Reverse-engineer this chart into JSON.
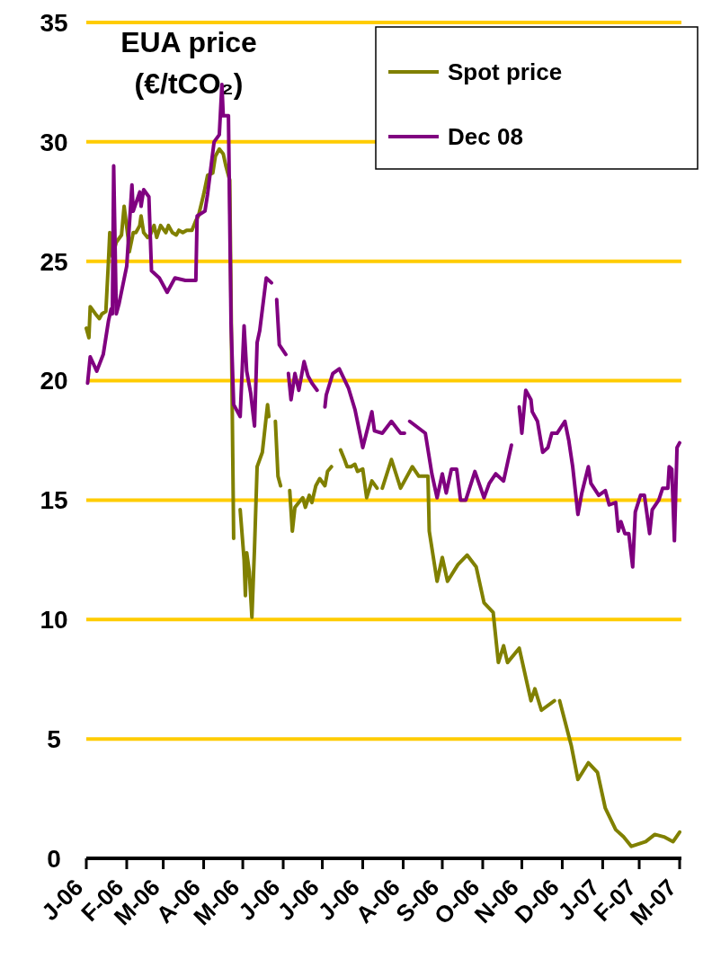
{
  "chart_data": {
    "type": "line",
    "title": "EUA price (€/tCO₂)",
    "xlim": [
      "2006-01-01",
      "2007-04-01"
    ],
    "xticks": [
      {
        "value": "2006-01-01",
        "label": "J-06"
      },
      {
        "value": "2006-02-01",
        "label": "F-06"
      },
      {
        "value": "2006-03-01",
        "label": "M-06"
      },
      {
        "value": "2006-04-01",
        "label": "A-06"
      },
      {
        "value": "2006-05-01",
        "label": "M-06"
      },
      {
        "value": "2006-06-01",
        "label": "J-06"
      },
      {
        "value": "2006-07-01",
        "label": "J-06"
      },
      {
        "value": "2006-08-01",
        "label": "J-06"
      },
      {
        "value": "2006-09-01",
        "label": "A-06"
      },
      {
        "value": "2006-10-01",
        "label": "S-06"
      },
      {
        "value": "2006-11-01",
        "label": "O-06"
      },
      {
        "value": "2006-12-01",
        "label": "N-06"
      },
      {
        "value": "2007-01-01",
        "label": "D-06"
      },
      {
        "value": "2007-02-01",
        "label": "J-07"
      },
      {
        "value": "2007-03-01",
        "label": "F-07"
      },
      {
        "value": "2007-04-01",
        "label": "M-07"
      }
    ],
    "ylim": [
      0,
      35
    ],
    "yticks": [
      0,
      5,
      10,
      15,
      20,
      25,
      30,
      35
    ],
    "grid": "y",
    "legend": "top right",
    "line_style": "solid",
    "marker": "none",
    "series": [
      {
        "name": "Spot price",
        "color": "#808000",
        "x": [
          "2006-01-01",
          "2006-01-03",
          "2006-01-04",
          "2006-01-08",
          "2006-01-11",
          "2006-01-13",
          "2006-01-16",
          "2006-01-18",
          "2006-01-19",
          "2006-01-21",
          "2006-01-24",
          "2006-01-28",
          "2006-01-30",
          "2006-02-02",
          "2006-02-03",
          "2006-02-06",
          "2006-02-08",
          "2006-02-11",
          "2006-02-12",
          "2006-02-14",
          "2006-02-17",
          "2006-02-19",
          "2006-02-22",
          "2006-02-24",
          "2006-02-27",
          "2006-03-03",
          "2006-03-05",
          "2006-03-08",
          "2006-03-11",
          "2006-03-13",
          "2006-03-16",
          "2006-03-19",
          "2006-03-23",
          "2006-03-26",
          "2006-03-28",
          "2006-04-01",
          "2006-04-04",
          "2006-04-08",
          "2006-04-10",
          "2006-04-13",
          "2006-04-16",
          "2006-04-18",
          "2006-04-21",
          "2006-04-24",
          "2006-04-26",
          "2006-04-29",
          "2006-05-02",
          "2006-05-03",
          "2006-05-04",
          "2006-05-06",
          "2006-05-08",
          "2006-05-10",
          "2006-05-12",
          "2006-05-16",
          "2006-05-20",
          "2006-05-21",
          "2006-05-23",
          "2006-05-26",
          "2006-05-28",
          "2006-05-30",
          "2006-06-02",
          "2006-06-06",
          "2006-06-08",
          "2006-06-10",
          "2006-06-13",
          "2006-06-16",
          "2006-06-18",
          "2006-06-21",
          "2006-06-23",
          "2006-06-26",
          "2006-06-29",
          "2006-07-03",
          "2006-07-05",
          "2006-07-08",
          "2006-07-10",
          "2006-07-15",
          "2006-07-18",
          "2006-07-20",
          "2006-07-23",
          "2006-07-26",
          "2006-07-28",
          "2006-08-01",
          "2006-08-04",
          "2006-08-08",
          "2006-08-12",
          "2006-08-13",
          "2006-08-16",
          "2006-08-23",
          "2006-08-30",
          "2006-09-08",
          "2006-09-13",
          "2006-09-20",
          "2006-09-21",
          "2006-09-27",
          "2006-10-01",
          "2006-10-05",
          "2006-10-13",
          "2006-10-20",
          "2006-10-27",
          "2006-11-02",
          "2006-11-09",
          "2006-11-13",
          "2006-11-17",
          "2006-11-20",
          "2006-11-29",
          "2006-12-08",
          "2006-12-11",
          "2006-12-16",
          "2006-12-26",
          "2006-12-28",
          "2006-12-30",
          "2007-01-08",
          "2007-01-13",
          "2007-01-21",
          "2007-01-28",
          "2007-02-03",
          "2007-02-11",
          "2007-02-17",
          "2007-02-23",
          "2007-03-06",
          "2007-03-13",
          "2007-03-20",
          "2007-03-27",
          "2007-04-01"
        ],
        "values": [
          22.2,
          21.8,
          23.1,
          22.8,
          22.6,
          22.8,
          22.9,
          25,
          26.2,
          25.2,
          25.8,
          26.1,
          27.3,
          26,
          25.4,
          26.2,
          26.2,
          26.5,
          26.9,
          26.2,
          26,
          26.1,
          26.5,
          26,
          26.5,
          26.2,
          26.5,
          26.2,
          26.1,
          26.3,
          26.2,
          26.3,
          26.3,
          26.7,
          26.9,
          27.8,
          28.6,
          28.7,
          29.4,
          29.7,
          29.5,
          29,
          28.4,
          13.4,
          null,
          14.6,
          12.5,
          11,
          12.8,
          12,
          10.1,
          13,
          16.4,
          17,
          19,
          18.5,
          null,
          18.3,
          16,
          15.6,
          null,
          15.4,
          13.7,
          14.7,
          14.9,
          15.1,
          14.7,
          15.2,
          14.9,
          15.6,
          15.9,
          15.6,
          16.2,
          16.4,
          null,
          17.1,
          16.7,
          16.4,
          16.4,
          16.5,
          16.2,
          16.3,
          15.1,
          15.8,
          15.5,
          null,
          15.5,
          16.7,
          15.5,
          16.4,
          16,
          16,
          13.7,
          11.6,
          12.6,
          11.6,
          12.3,
          12.7,
          12.2,
          10.7,
          10.3,
          8.2,
          8.9,
          8.2,
          8.8,
          6.6,
          7.1,
          6.2,
          6.6,
          null,
          6.6,
          4.7,
          3.3,
          4,
          3.6,
          2.1,
          1.2,
          0.9,
          0.5,
          0.7,
          1,
          0.9,
          0.7,
          1.1
        ]
      },
      {
        "name": "Dec 08",
        "color": "#800080",
        "x": [
          "2006-01-02",
          "2006-01-04",
          "2006-01-09",
          "2006-01-14",
          "2006-01-18",
          "2006-01-20",
          "2006-01-21",
          "2006-01-22",
          "2006-01-24",
          "2006-01-26",
          "2006-02-01",
          "2006-02-05",
          "2006-02-06",
          "2006-02-11",
          "2006-02-12",
          "2006-02-14",
          "2006-02-18",
          "2006-02-20",
          "2006-02-26",
          "2006-03-04",
          "2006-03-10",
          "2006-03-18",
          "2006-03-26",
          "2006-03-27",
          "2006-04-02",
          "2006-04-04",
          "2006-04-09",
          "2006-04-13",
          "2006-04-15",
          "2006-04-16",
          "2006-04-20",
          "2006-04-22",
          "2006-04-24",
          "2006-04-29",
          "2006-05-02",
          "2006-05-04",
          "2006-05-07",
          "2006-05-10",
          "2006-05-12",
          "2006-05-14",
          "2006-05-19",
          "2006-05-23",
          "2006-05-24",
          "2006-05-27",
          "2006-05-29",
          "2006-06-03",
          "2006-06-04",
          "2006-06-05",
          "2006-06-07",
          "2006-06-10",
          "2006-06-13",
          "2006-06-17",
          "2006-06-20",
          "2006-06-23",
          "2006-06-27",
          "2006-06-29",
          "2006-07-03",
          "2006-07-04",
          "2006-07-09",
          "2006-07-14",
          "2006-07-21",
          "2006-07-26",
          "2006-08-01",
          "2006-08-08",
          "2006-08-10",
          "2006-08-16",
          "2006-08-23",
          "2006-08-30",
          "2006-09-02",
          "2006-09-04",
          "2006-09-06",
          "2006-09-18",
          "2006-09-23",
          "2006-09-27",
          "2006-10-01",
          "2006-10-04",
          "2006-10-08",
          "2006-10-12",
          "2006-10-15",
          "2006-10-19",
          "2006-10-26",
          "2006-11-02",
          "2006-11-06",
          "2006-11-11",
          "2006-11-17",
          "2006-11-23",
          "2006-11-26",
          "2006-11-29",
          "2006-12-01",
          "2006-12-04",
          "2006-12-08",
          "2006-12-09",
          "2006-12-13",
          "2006-12-17",
          "2006-12-21",
          "2006-12-24",
          "2006-12-28",
          "2007-01-03",
          "2007-01-06",
          "2007-01-09",
          "2007-01-13",
          "2007-01-16",
          "2007-01-21",
          "2007-01-23",
          "2007-01-29",
          "2007-02-03",
          "2007-02-06",
          "2007-02-11",
          "2007-02-13",
          "2007-02-15",
          "2007-02-18",
          "2007-02-21",
          "2007-02-24",
          "2007-02-26",
          "2007-03-02",
          "2007-03-05",
          "2007-03-09",
          "2007-03-11",
          "2007-03-16",
          "2007-03-19",
          "2007-03-23",
          "2007-03-24",
          "2007-03-26",
          "2007-03-28",
          "2007-03-30",
          "2007-04-01"
        ],
        "values": [
          19.9,
          21,
          20.4,
          21.1,
          22.5,
          23,
          22.8,
          29,
          22.8,
          23.2,
          24.8,
          28.2,
          27.1,
          27.9,
          27.3,
          28,
          27.7,
          24.6,
          24.3,
          23.7,
          24.3,
          24.2,
          24.2,
          26.9,
          27.1,
          27.8,
          30,
          30.3,
          32.4,
          31.1,
          31.1,
          22.4,
          19,
          18.5,
          22.3,
          20.4,
          19.5,
          18.1,
          21.6,
          22.1,
          24.3,
          24.1,
          null,
          23.4,
          21.5,
          21.1,
          null,
          20.3,
          19.2,
          20.3,
          19.6,
          20.8,
          20.2,
          19.9,
          19.6,
          null,
          18.9,
          19.4,
          20.3,
          20.5,
          19.7,
          18.8,
          17.2,
          18.7,
          17.9,
          17.8,
          18.3,
          17.8,
          17.8,
          null,
          18.3,
          17.8,
          16.1,
          15.1,
          16.1,
          15.3,
          16.3,
          16.3,
          15,
          15,
          16.2,
          15.1,
          15.7,
          16.1,
          15.8,
          17.3,
          null,
          18.9,
          17.8,
          19.6,
          19.2,
          18.7,
          18.3,
          17,
          17.2,
          17.8,
          17.8,
          18.3,
          17.5,
          16.4,
          14.4,
          15.3,
          16.4,
          15.7,
          15.2,
          15.4,
          14.8,
          14.9,
          13.7,
          14.1,
          13.6,
          13.6,
          12.2,
          14.5,
          15.2,
          15.2,
          13.6,
          14.6,
          15,
          15.5,
          15.5,
          16.4,
          16.3,
          13.3,
          17.2,
          17.4
        ]
      }
    ]
  }
}
